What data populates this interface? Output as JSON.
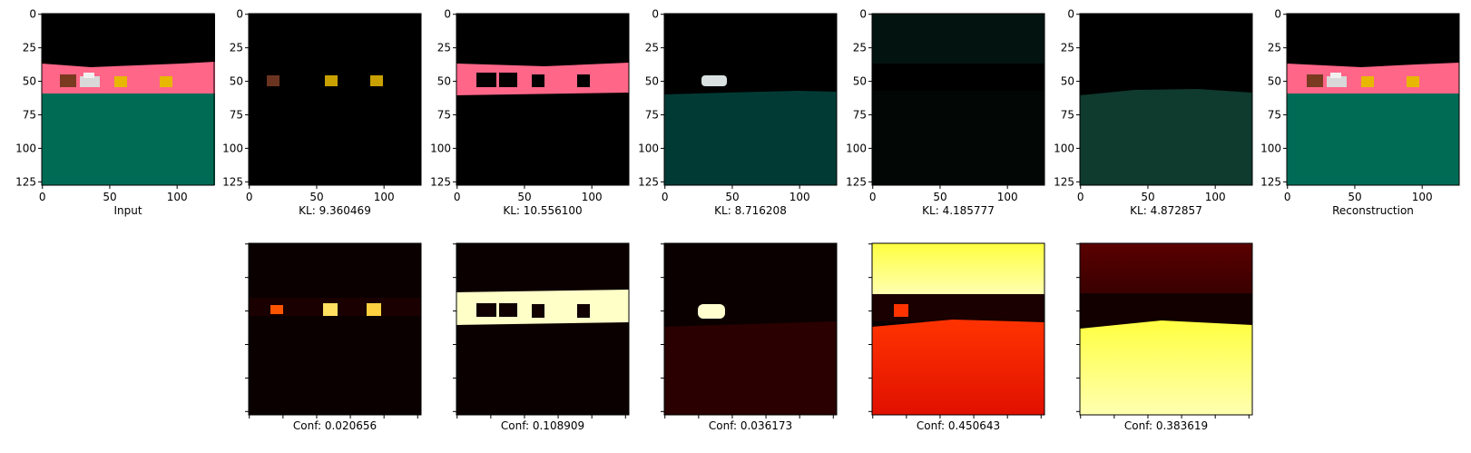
{
  "figure": {
    "top_row": [
      {
        "caption": "Input",
        "ticks_x": [
          "0",
          "50",
          "100"
        ],
        "ticks_y": [
          "0",
          "25",
          "50",
          "75",
          "100",
          "125"
        ]
      },
      {
        "caption": "KL: 9.360469",
        "ticks_x": [
          "0",
          "50",
          "100"
        ],
        "ticks_y": [
          "0",
          "25",
          "50",
          "75",
          "100",
          "125"
        ]
      },
      {
        "caption": "KL: 10.556100",
        "ticks_x": [
          "0",
          "50",
          "100"
        ],
        "ticks_y": [
          "0",
          "25",
          "50",
          "75",
          "100",
          "125"
        ]
      },
      {
        "caption": "KL: 8.716208",
        "ticks_x": [
          "0",
          "50",
          "100"
        ],
        "ticks_y": [
          "0",
          "25",
          "50",
          "75",
          "100",
          "125"
        ]
      },
      {
        "caption": "KL: 4.185777",
        "ticks_x": [
          "0",
          "50",
          "100"
        ],
        "ticks_y": [
          "0",
          "25",
          "50",
          "75",
          "100",
          "125"
        ]
      },
      {
        "caption": "KL: 4.872857",
        "ticks_x": [
          "0",
          "50",
          "100"
        ],
        "ticks_y": [
          "0",
          "25",
          "50",
          "75",
          "100",
          "125"
        ]
      },
      {
        "caption": "Reconstruction",
        "ticks_x": [
          "0",
          "50",
          "100"
        ],
        "ticks_y": [
          "0",
          "25",
          "50",
          "75",
          "100",
          "125"
        ]
      }
    ],
    "bottom_row": [
      {
        "caption": "Conf: 0.020656"
      },
      {
        "caption": "Conf: 0.108909"
      },
      {
        "caption": "Conf: 0.036173"
      },
      {
        "caption": "Conf: 0.450643"
      },
      {
        "caption": "Conf: 0.383619"
      }
    ],
    "colors": {
      "pink_band": "#ff6688",
      "green_floor": "#006b55",
      "heat_black": "#0b0000",
      "heat_red": "#e52000",
      "heat_yellow": "#ffff80"
    }
  }
}
